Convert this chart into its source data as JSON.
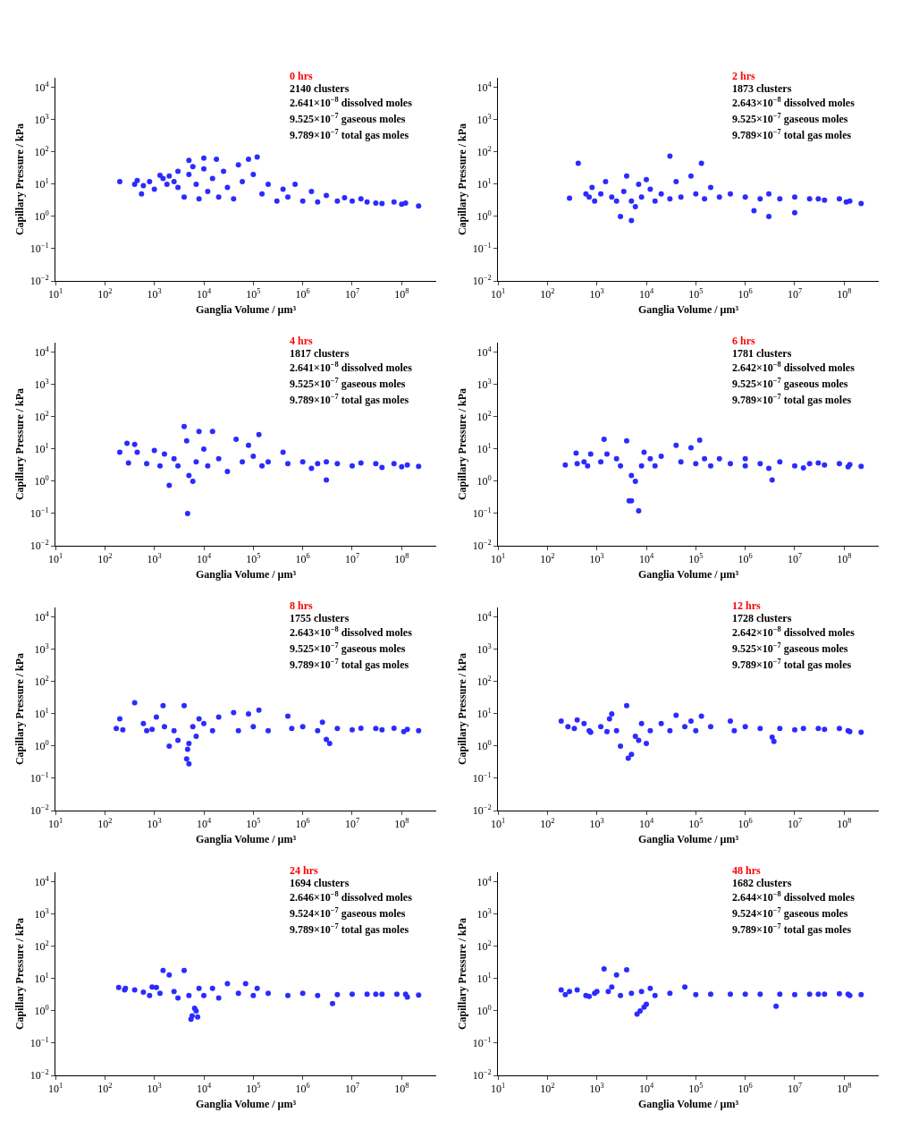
{
  "chart_data": [
    {
      "type": "scatter",
      "title": "0 hrs",
      "annotations": [
        "2140 clusters",
        "2.641×10$^{−8}$ dissolved moles",
        "9.525×10$^{−7}$ gaseous moles",
        "9.789×10$^{−7}$ total gas moles"
      ],
      "xlabel": "Ganglia Volume / µm³",
      "ylabel": "Capillary Pressure / kPa",
      "log": "xy",
      "marker": "circle",
      "grid": false,
      "legend": false,
      "xlim": [
        10,
        500000000
      ],
      "ylim": [
        0.01,
        20000
      ],
      "xticks": [
        {
          "value": 10,
          "label": "10$^{1}$"
        },
        {
          "value": 100,
          "label": "10$^{2}$"
        },
        {
          "value": 1000,
          "label": "10$^{3}$"
        },
        {
          "value": 10000,
          "label": "10$^{4}$"
        },
        {
          "value": 100000,
          "label": "10$^{5}$"
        },
        {
          "value": 1000000,
          "label": "10$^{6}$"
        },
        {
          "value": 10000000,
          "label": "10$^{7}$"
        },
        {
          "value": 100000000,
          "label": "10$^{8}$"
        }
      ],
      "yticks": [
        {
          "value": 0.01,
          "label": "10$^{−2}$"
        },
        {
          "value": 0.1,
          "label": "10$^{−1}$"
        },
        {
          "value": 1,
          "label": "10$^{0}$"
        },
        {
          "value": 10,
          "label": "10$^{1}$"
        },
        {
          "value": 100,
          "label": "10$^{2}$"
        },
        {
          "value": 1000,
          "label": "10$^{3}$"
        },
        {
          "value": 10000,
          "label": "10$^{4}$"
        }
      ],
      "color": "#2b2bff",
      "x": [
        200,
        400,
        450,
        550,
        600,
        800,
        1000,
        1300,
        1500,
        1800,
        2000,
        2500,
        3000,
        3000,
        4000,
        5000,
        5000,
        6000,
        7000,
        8000,
        10000,
        10000,
        12000,
        15000,
        18000,
        20000,
        25000,
        30000,
        40000,
        50000,
        60000,
        80000,
        100000,
        120000,
        150000,
        200000,
        300000,
        400000,
        500000,
        700000,
        1000000,
        1500000,
        2000000,
        3000000,
        5000000,
        7000000,
        10000000,
        15000000,
        20000000,
        30000000,
        40000000,
        70000000,
        100000000,
        120000000,
        220000000
      ],
      "values": [
        12,
        10,
        13,
        5,
        9,
        12,
        7,
        19,
        15,
        10,
        18,
        12,
        8,
        25,
        4,
        55,
        20,
        35,
        10,
        3.5,
        65,
        30,
        6,
        15,
        60,
        4,
        25,
        8,
        3.5,
        40,
        12,
        60,
        20,
        70,
        5,
        10,
        3,
        7,
        4,
        10,
        3,
        6,
        2.8,
        4.5,
        3,
        3.8,
        3,
        3.5,
        2.8,
        2.6,
        2.5,
        2.8,
        2.4,
        2.6,
        2.1
      ]
    },
    {
      "type": "scatter",
      "title": "2 hrs",
      "annotations": [
        "1873 clusters",
        "2.643×10$^{−8}$ dissolved moles",
        "9.525×10$^{−7}$ gaseous moles",
        "9.789×10$^{−7}$ total gas moles"
      ],
      "xlabel": "Ganglia Volume / µm³",
      "ylabel": "Capillary Pressure / kPa",
      "log": "xy",
      "marker": "circle",
      "grid": false,
      "legend": false,
      "xlim": [
        10,
        500000000
      ],
      "ylim": [
        0.01,
        20000
      ],
      "xticks": [
        {
          "value": 10,
          "label": "10$^{1}$"
        },
        {
          "value": 100,
          "label": "10$^{2}$"
        },
        {
          "value": 1000,
          "label": "10$^{3}$"
        },
        {
          "value": 10000,
          "label": "10$^{4}$"
        },
        {
          "value": 100000,
          "label": "10$^{5}$"
        },
        {
          "value": 1000000,
          "label": "10$^{6}$"
        },
        {
          "value": 10000000,
          "label": "10$^{7}$"
        },
        {
          "value": 100000000,
          "label": "10$^{8}$"
        }
      ],
      "yticks": [
        {
          "value": 0.01,
          "label": "10$^{−2}$"
        },
        {
          "value": 0.1,
          "label": "10$^{−1}$"
        },
        {
          "value": 1,
          "label": "10$^{0}$"
        },
        {
          "value": 10,
          "label": "10$^{1}$"
        },
        {
          "value": 100,
          "label": "10$^{2}$"
        },
        {
          "value": 1000,
          "label": "10$^{3}$"
        },
        {
          "value": 10000,
          "label": "10$^{4}$"
        }
      ],
      "color": "#2b2bff",
      "x": [
        280,
        420,
        600,
        700,
        800,
        900,
        1200,
        1500,
        2000,
        2500,
        3000,
        3500,
        4000,
        5000,
        5000,
        6000,
        7000,
        8000,
        10000,
        12000,
        15000,
        20000,
        30000,
        30000,
        40000,
        50000,
        80000,
        100000,
        130000,
        150000,
        200000,
        300000,
        500000,
        1000000,
        1500000,
        2000000,
        3000000,
        3000000,
        5000000,
        10000000,
        10000000,
        20000000,
        30000000,
        40000000,
        80000000,
        110000000,
        130000000,
        220000000
      ],
      "values": [
        3.7,
        45,
        5,
        4,
        8,
        3,
        5,
        12,
        4,
        3,
        1,
        6,
        18,
        0.75,
        3,
        2,
        10,
        4,
        14,
        7,
        3,
        5,
        75,
        3.5,
        12,
        4,
        18,
        5,
        45,
        3.5,
        8,
        4,
        5,
        4,
        1.5,
        3.5,
        1,
        5,
        3.5,
        1.3,
        4,
        3.5,
        3.5,
        3.2,
        3.5,
        2.8,
        3,
        2.5
      ]
    },
    {
      "type": "scatter",
      "title": "4 hrs",
      "annotations": [
        "1817 clusters",
        "2.641×10$^{−8}$ dissolved moles",
        "9.525×10$^{−7}$ gaseous moles",
        "9.789×10$^{−7}$ total gas moles"
      ],
      "xlabel": "Ganglia Volume / µm³",
      "ylabel": "Capillary Pressure / kPa",
      "log": "xy",
      "marker": "circle",
      "grid": false,
      "legend": false,
      "xlim": [
        10,
        500000000
      ],
      "ylim": [
        0.01,
        20000
      ],
      "xticks": [
        {
          "value": 10,
          "label": "10$^{1}$"
        },
        {
          "value": 100,
          "label": "10$^{2}$"
        },
        {
          "value": 1000,
          "label": "10$^{3}$"
        },
        {
          "value": 10000,
          "label": "10$^{4}$"
        },
        {
          "value": 100000,
          "label": "10$^{5}$"
        },
        {
          "value": 1000000,
          "label": "10$^{6}$"
        },
        {
          "value": 10000000,
          "label": "10$^{7}$"
        },
        {
          "value": 100000000,
          "label": "10$^{8}$"
        }
      ],
      "yticks": [
        {
          "value": 0.01,
          "label": "10$^{−2}$"
        },
        {
          "value": 0.1,
          "label": "10$^{−1}$"
        },
        {
          "value": 1,
          "label": "10$^{0}$"
        },
        {
          "value": 10,
          "label": "10$^{1}$"
        },
        {
          "value": 100,
          "label": "10$^{2}$"
        },
        {
          "value": 1000,
          "label": "10$^{3}$"
        },
        {
          "value": 10000,
          "label": "10$^{4}$"
        }
      ],
      "color": "#2b2bff",
      "x": [
        200,
        280,
        300,
        400,
        450,
        700,
        1000,
        1300,
        1600,
        2000,
        2500,
        3000,
        4000,
        4500,
        4700,
        5000,
        6000,
        7000,
        8000,
        10000,
        12000,
        15000,
        20000,
        30000,
        45000,
        60000,
        80000,
        100000,
        130000,
        150000,
        200000,
        400000,
        500000,
        1000000,
        1500000,
        2000000,
        3000000,
        3000000,
        5000000,
        10000000,
        15000000,
        30000000,
        40000000,
        70000000,
        100000000,
        130000000,
        220000000
      ],
      "values": [
        8,
        15,
        3.7,
        14,
        8,
        3.5,
        9,
        3,
        7,
        0.75,
        5,
        3,
        50,
        18,
        0.1,
        1.5,
        1,
        4,
        35,
        10,
        3,
        35,
        5,
        2,
        20,
        4,
        13,
        6,
        28,
        3,
        4,
        8,
        3.5,
        4,
        2.5,
        3.5,
        1.1,
        4,
        3.5,
        3,
        3.7,
        3.5,
        2.7,
        3.5,
        2.8,
        3.2,
        2.9
      ]
    },
    {
      "type": "scatter",
      "title": "6 hrs",
      "annotations": [
        "1781 clusters",
        "2.642×10$^{−8}$ dissolved moles",
        "9.525×10$^{−7}$ gaseous moles",
        "9.789×10$^{−7}$ total gas moles"
      ],
      "xlabel": "Ganglia Volume / µm³",
      "ylabel": "Capillary Pressure / kPa",
      "log": "xy",
      "marker": "circle",
      "grid": false,
      "legend": false,
      "xlim": [
        10,
        500000000
      ],
      "ylim": [
        0.01,
        20000
      ],
      "xticks": [
        {
          "value": 10,
          "label": "10$^{1}$"
        },
        {
          "value": 100,
          "label": "10$^{2}$"
        },
        {
          "value": 1000,
          "label": "10$^{3}$"
        },
        {
          "value": 10000,
          "label": "10$^{4}$"
        },
        {
          "value": 100000,
          "label": "10$^{5}$"
        },
        {
          "value": 1000000,
          "label": "10$^{6}$"
        },
        {
          "value": 10000000,
          "label": "10$^{7}$"
        },
        {
          "value": 100000000,
          "label": "10$^{8}$"
        }
      ],
      "yticks": [
        {
          "value": 0.01,
          "label": "10$^{−2}$"
        },
        {
          "value": 0.1,
          "label": "10$^{−1}$"
        },
        {
          "value": 1,
          "label": "10$^{0}$"
        },
        {
          "value": 10,
          "label": "10$^{1}$"
        },
        {
          "value": 100,
          "label": "10$^{2}$"
        },
        {
          "value": 1000,
          "label": "10$^{3}$"
        },
        {
          "value": 10000,
          "label": "10$^{4}$"
        }
      ],
      "color": "#2b2bff",
      "x": [
        230,
        380,
        400,
        550,
        650,
        750,
        1200,
        1400,
        1600,
        2500,
        3000,
        4000,
        4500,
        5000,
        5000,
        6000,
        7000,
        8000,
        9000,
        12000,
        15000,
        20000,
        40000,
        50000,
        80000,
        100000,
        120000,
        150000,
        200000,
        300000,
        500000,
        1000000,
        1000000,
        2000000,
        3000000,
        3500000,
        5000000,
        10000000,
        15000000,
        20000000,
        30000000,
        40000000,
        80000000,
        120000000,
        130000000,
        220000000
      ],
      "values": [
        3.2,
        7.5,
        3.5,
        4,
        3,
        7,
        4,
        20,
        7,
        5,
        3,
        18,
        0.25,
        0.25,
        1.5,
        1,
        0.12,
        3,
        8,
        5,
        3,
        6,
        13,
        4,
        11,
        3.5,
        19,
        5,
        3,
        5,
        3.5,
        5,
        3,
        3.5,
        2.5,
        1.1,
        4,
        3,
        2.6,
        3.5,
        3.7,
        3.2,
        3.5,
        2.8,
        3.3,
        2.9
      ]
    },
    {
      "type": "scatter",
      "title": "8 hrs",
      "annotations": [
        "1755 clusters",
        "2.643×10$^{−8}$ dissolved moles",
        "9.525×10$^{−7}$ gaseous moles",
        "9.789×10$^{−7}$ total gas moles"
      ],
      "xlabel": "Ganglia Volume / µm³",
      "ylabel": "Capillary Pressure / kPa",
      "log": "xy",
      "marker": "circle",
      "grid": false,
      "legend": false,
      "xlim": [
        10,
        500000000
      ],
      "ylim": [
        0.01,
        20000
      ],
      "xticks": [
        {
          "value": 10,
          "label": "10$^{1}$"
        },
        {
          "value": 100,
          "label": "10$^{2}$"
        },
        {
          "value": 1000,
          "label": "10$^{3}$"
        },
        {
          "value": 10000,
          "label": "10$^{4}$"
        },
        {
          "value": 100000,
          "label": "10$^{5}$"
        },
        {
          "value": 1000000,
          "label": "10$^{6}$"
        },
        {
          "value": 10000000,
          "label": "10$^{7}$"
        },
        {
          "value": 100000000,
          "label": "10$^{8}$"
        }
      ],
      "yticks": [
        {
          "value": 0.01,
          "label": "10$^{−2}$"
        },
        {
          "value": 0.1,
          "label": "10$^{−1}$"
        },
        {
          "value": 1,
          "label": "10$^{0}$"
        },
        {
          "value": 10,
          "label": "10$^{1}$"
        },
        {
          "value": 100,
          "label": "10$^{2}$"
        },
        {
          "value": 1000,
          "label": "10$^{3}$"
        },
        {
          "value": 10000,
          "label": "10$^{4}$"
        }
      ],
      "color": "#2b2bff",
      "x": [
        170,
        200,
        230,
        400,
        600,
        700,
        900,
        1100,
        1500,
        1600,
        2000,
        2500,
        3000,
        4000,
        4500,
        4700,
        5000,
        5000,
        6000,
        7000,
        8000,
        10000,
        15000,
        20000,
        40000,
        50000,
        80000,
        100000,
        130000,
        200000,
        500000,
        600000,
        1000000,
        2000000,
        2500000,
        3000000,
        3500000,
        5000000,
        10000000,
        15000000,
        30000000,
        40000000,
        70000000,
        110000000,
        130000000,
        220000000
      ],
      "values": [
        3.5,
        7,
        3.2,
        22,
        5,
        3,
        3.3,
        8,
        18,
        4,
        1,
        3,
        1.5,
        18,
        0.4,
        0.8,
        0.28,
        1.2,
        4,
        2,
        7,
        5,
        3,
        8,
        11,
        3,
        10,
        4,
        13,
        3,
        8.5,
        3.5,
        4,
        3,
        5.5,
        1.6,
        1.2,
        3.5,
        3.2,
        3.6,
        3.5,
        3.2,
        3.6,
        2.8,
        3.3,
        3
      ]
    },
    {
      "type": "scatter",
      "title": "12 hrs",
      "annotations": [
        "1728 clusters",
        "2.642×10$^{−8}$ dissolved moles",
        "9.525×10$^{−7}$ gaseous moles",
        "9.789×10$^{−7}$ total gas moles"
      ],
      "xlabel": "Ganglia Volume / µm³",
      "ylabel": "Capillary Pressure / kPa",
      "log": "xy",
      "marker": "circle",
      "grid": false,
      "legend": false,
      "xlim": [
        10,
        500000000
      ],
      "ylim": [
        0.01,
        20000
      ],
      "xticks": [
        {
          "value": 10,
          "label": "10$^{1}$"
        },
        {
          "value": 100,
          "label": "10$^{2}$"
        },
        {
          "value": 1000,
          "label": "10$^{3}$"
        },
        {
          "value": 10000,
          "label": "10$^{4}$"
        },
        {
          "value": 100000,
          "label": "10$^{5}$"
        },
        {
          "value": 1000000,
          "label": "10$^{6}$"
        },
        {
          "value": 10000000,
          "label": "10$^{7}$"
        },
        {
          "value": 100000000,
          "label": "10$^{8}$"
        }
      ],
      "yticks": [
        {
          "value": 0.01,
          "label": "10$^{−2}$"
        },
        {
          "value": 0.1,
          "label": "10$^{−1}$"
        },
        {
          "value": 1,
          "label": "10$^{0}$"
        },
        {
          "value": 10,
          "label": "10$^{1}$"
        },
        {
          "value": 100,
          "label": "10$^{2}$"
        },
        {
          "value": 1000,
          "label": "10$^{3}$"
        },
        {
          "value": 10000,
          "label": "10$^{4}$"
        }
      ],
      "color": "#2b2bff",
      "x": [
        190,
        260,
        350,
        400,
        550,
        700,
        750,
        1200,
        1600,
        1800,
        2000,
        2500,
        3000,
        4000,
        4300,
        5000,
        6000,
        7000,
        8000,
        10000,
        12000,
        20000,
        30000,
        40000,
        60000,
        80000,
        100000,
        130000,
        200000,
        500000,
        600000,
        1000000,
        2000000,
        3500000,
        3800000,
        5000000,
        10000000,
        15000000,
        30000000,
        40000000,
        80000000,
        120000000,
        130000000,
        220000000
      ],
      "values": [
        6,
        4,
        3.5,
        6.5,
        5,
        3,
        2.7,
        4,
        2.8,
        7,
        10,
        3,
        1,
        18,
        0.42,
        0.55,
        2,
        1.5,
        5,
        1.2,
        3,
        5,
        3,
        9,
        4,
        6,
        3,
        8.5,
        4,
        6,
        3,
        4,
        3.5,
        1.9,
        1.4,
        3.5,
        3.2,
        3.5,
        3.5,
        3.3,
        3.5,
        3,
        2.8,
        2.7
      ]
    },
    {
      "type": "scatter",
      "title": "24 hrs",
      "annotations": [
        "1694 clusters",
        "2.646×10$^{−8}$ dissolved moles",
        "9.524×10$^{−7}$ gaseous moles",
        "9.789×10$^{−7}$ total gas moles"
      ],
      "xlabel": "Ganglia Volume / µm³",
      "ylabel": "Capillary Pressure / kPa",
      "log": "xy",
      "marker": "circle",
      "grid": false,
      "legend": false,
      "xlim": [
        10,
        500000000
      ],
      "ylim": [
        0.01,
        20000
      ],
      "xticks": [
        {
          "value": 10,
          "label": "10$^{1}$"
        },
        {
          "value": 100,
          "label": "10$^{2}$"
        },
        {
          "value": 1000,
          "label": "10$^{3}$"
        },
        {
          "value": 10000,
          "label": "10$^{4}$"
        },
        {
          "value": 100000,
          "label": "10$^{5}$"
        },
        {
          "value": 1000000,
          "label": "10$^{6}$"
        },
        {
          "value": 10000000,
          "label": "10$^{7}$"
        },
        {
          "value": 100000000,
          "label": "10$^{8}$"
        }
      ],
      "yticks": [
        {
          "value": 0.01,
          "label": "10$^{−2}$"
        },
        {
          "value": 0.1,
          "label": "10$^{−1}$"
        },
        {
          "value": 1,
          "label": "10$^{0}$"
        },
        {
          "value": 10,
          "label": "10$^{1}$"
        },
        {
          "value": 100,
          "label": "10$^{2}$"
        },
        {
          "value": 1000,
          "label": "10$^{3}$"
        },
        {
          "value": 10000,
          "label": "10$^{4}$"
        }
      ],
      "color": "#2b2bff",
      "x": [
        190,
        250,
        260,
        400,
        600,
        800,
        900,
        1100,
        1300,
        1500,
        2000,
        2500,
        3000,
        4000,
        5000,
        5500,
        5800,
        6500,
        7000,
        7500,
        8000,
        10000,
        15000,
        20000,
        30000,
        50000,
        70000,
        100000,
        120000,
        200000,
        500000,
        1000000,
        2000000,
        4000000,
        5000000,
        10000000,
        20000000,
        30000000,
        40000000,
        80000000,
        120000000,
        130000000,
        220000000
      ],
      "values": [
        5.3,
        4.5,
        5,
        4.5,
        3.8,
        3,
        5.5,
        5.3,
        3.5,
        18,
        13,
        4,
        2.5,
        18,
        3,
        0.55,
        0.7,
        1.2,
        1,
        0.65,
        5,
        3,
        5,
        2.5,
        7,
        3.5,
        7,
        3,
        5,
        3.5,
        3,
        3.5,
        3,
        1.7,
        3.2,
        3.3,
        3.3,
        3.3,
        3.3,
        3.3,
        3.3,
        2.7,
        3.1
      ]
    },
    {
      "type": "scatter",
      "title": "48 hrs",
      "annotations": [
        "1682 clusters",
        "2.644×10$^{−8}$ dissolved moles",
        "9.524×10$^{−7}$ gaseous moles",
        "9.789×10$^{−7}$ total gas moles"
      ],
      "xlabel": "Ganglia Volume / µm³",
      "ylabel": "Capillary Pressure / kPa",
      "log": "xy",
      "marker": "circle",
      "grid": false,
      "legend": false,
      "xlim": [
        10,
        500000000
      ],
      "ylim": [
        0.01,
        20000
      ],
      "xticks": [
        {
          "value": 10,
          "label": "10$^{1}$"
        },
        {
          "value": 100,
          "label": "10$^{2}$"
        },
        {
          "value": 1000,
          "label": "10$^{3}$"
        },
        {
          "value": 10000,
          "label": "10$^{4}$"
        },
        {
          "value": 100000,
          "label": "10$^{5}$"
        },
        {
          "value": 1000000,
          "label": "10$^{6}$"
        },
        {
          "value": 10000000,
          "label": "10$^{7}$"
        },
        {
          "value": 100000000,
          "label": "10$^{8}$"
        }
      ],
      "yticks": [
        {
          "value": 0.01,
          "label": "10$^{−2}$"
        },
        {
          "value": 0.1,
          "label": "10$^{−1}$"
        },
        {
          "value": 1,
          "label": "10$^{0}$"
        },
        {
          "value": 10,
          "label": "10$^{1}$"
        },
        {
          "value": 100,
          "label": "10$^{2}$"
        },
        {
          "value": 1000,
          "label": "10$^{3}$"
        },
        {
          "value": 10000,
          "label": "10$^{4}$"
        }
      ],
      "color": "#2b2bff",
      "x": [
        190,
        230,
        280,
        400,
        600,
        700,
        900,
        1000,
        1400,
        1700,
        2000,
        2500,
        3000,
        4000,
        5000,
        6500,
        7500,
        8000,
        9000,
        10000,
        12000,
        15000,
        30000,
        60000,
        100000,
        200000,
        500000,
        1000000,
        2000000,
        4200000,
        5000000,
        10000000,
        20000000,
        30000000,
        40000000,
        80000000,
        120000000,
        130000000,
        220000000
      ],
      "values": [
        4.5,
        3.2,
        4,
        4.5,
        3,
        2.8,
        3.5,
        4,
        20,
        4,
        5.5,
        13,
        3,
        19,
        3.5,
        0.8,
        1,
        4,
        1.3,
        1.6,
        5,
        3,
        3.5,
        5.5,
        3.2,
        3.3,
        3.3,
        3.3,
        3.3,
        1.4,
        3.3,
        3.2,
        3.3,
        3.3,
        3.3,
        3.4,
        3.3,
        3,
        3.2
      ]
    }
  ]
}
